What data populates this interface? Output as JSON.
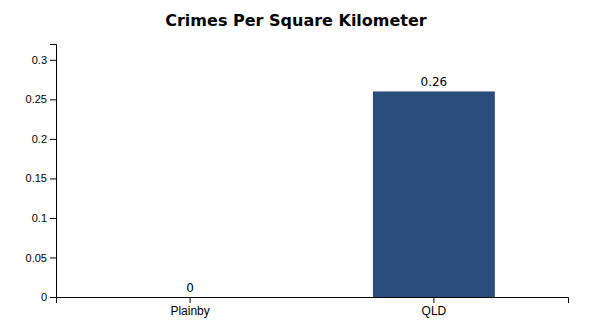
{
  "chart_data": {
    "type": "bar",
    "title": "Crimes Per Square Kilometer",
    "categories": [
      "Plainby",
      "QLD"
    ],
    "values": [
      0,
      0.26
    ],
    "color": "#2b4d7e",
    "ylim": [
      0,
      0.32
    ],
    "yticks": [
      0,
      0.05,
      0.1,
      0.15,
      0.2,
      0.25,
      0.3
    ],
    "grid": false,
    "data_labels": true
  }
}
